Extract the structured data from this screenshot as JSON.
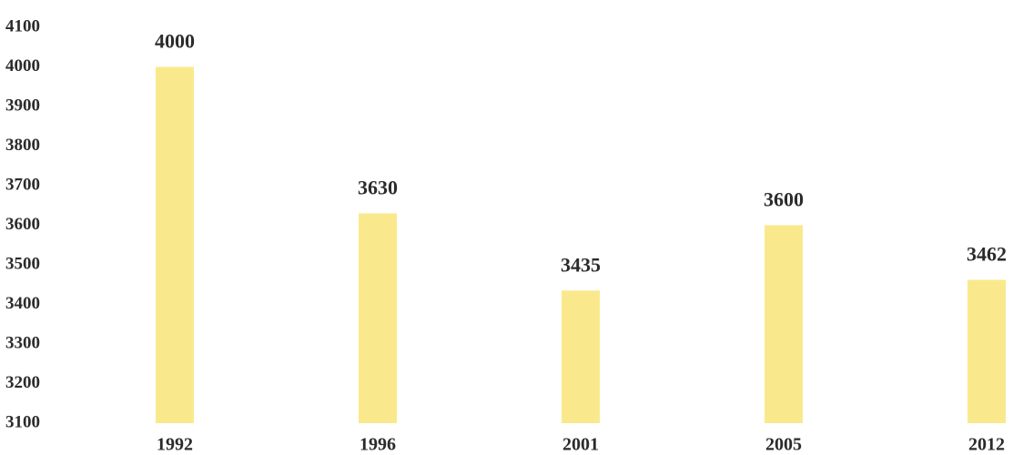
{
  "chart_data": {
    "type": "bar",
    "categories": [
      "1992",
      "1996",
      "2001",
      "2005",
      "2012"
    ],
    "values": [
      4000,
      3630,
      3435,
      3600,
      3462
    ],
    "color": "#fae98c",
    "ylim": [
      3100,
      4100
    ],
    "yticks": [
      3100,
      3200,
      3300,
      3400,
      3500,
      3600,
      3700,
      3800,
      3900,
      4000,
      4100
    ],
    "grid": false
  }
}
